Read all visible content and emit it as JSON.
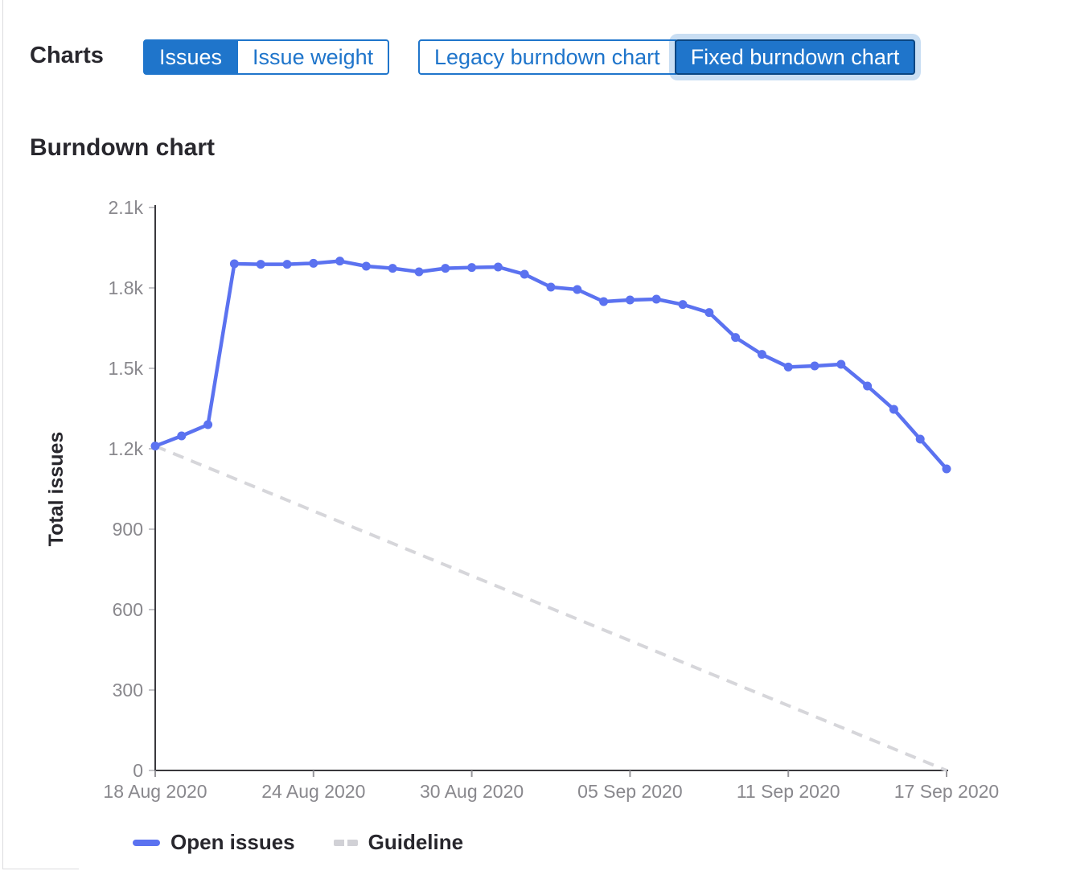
{
  "header": {
    "charts_label": "Charts"
  },
  "toggles": {
    "metric": {
      "options": [
        "Issues",
        "Issue weight"
      ],
      "selected": "Issues"
    },
    "chart_type": {
      "options": [
        "Legacy burndown chart",
        "Fixed burndown chart"
      ],
      "selected": "Fixed burndown chart"
    }
  },
  "section": {
    "title": "Burndown chart"
  },
  "colors": {
    "accent_blue": "#1f75cb",
    "focus_border": "#0a4682",
    "open_issues_line": "#5b72f0",
    "guideline": "#d6d6da",
    "axis": "#39383d",
    "tick_label": "#89888d",
    "text_dark": "#28272d",
    "panel_border": "#dcdcde"
  },
  "chart_data": {
    "type": "line",
    "title": "Burndown chart",
    "xlabel": "",
    "ylabel": "Total issues",
    "ylim": [
      0,
      2100
    ],
    "grid": false,
    "legend_position": "bottom",
    "y_ticks": [
      {
        "value": 0,
        "label": "0"
      },
      {
        "value": 300,
        "label": "300"
      },
      {
        "value": 600,
        "label": "600"
      },
      {
        "value": 900,
        "label": "900"
      },
      {
        "value": 1200,
        "label": "1.2k"
      },
      {
        "value": 1500,
        "label": "1.5k"
      },
      {
        "value": 1800,
        "label": "1.8k"
      },
      {
        "value": 2100,
        "label": "2.1k"
      }
    ],
    "x_ticks": [
      {
        "index": 0,
        "label": "18 Aug 2020"
      },
      {
        "index": 6,
        "label": "24 Aug 2020"
      },
      {
        "index": 12,
        "label": "30 Aug 2020"
      },
      {
        "index": 18,
        "label": "05 Sep 2020"
      },
      {
        "index": 24,
        "label": "11 Sep 2020"
      },
      {
        "index": 30,
        "label": "17 Sep 2020"
      }
    ],
    "categories": [
      "18 Aug 2020",
      "19 Aug 2020",
      "20 Aug 2020",
      "21 Aug 2020",
      "22 Aug 2020",
      "23 Aug 2020",
      "24 Aug 2020",
      "25 Aug 2020",
      "26 Aug 2020",
      "27 Aug 2020",
      "28 Aug 2020",
      "29 Aug 2020",
      "30 Aug 2020",
      "31 Aug 2020",
      "01 Sep 2020",
      "02 Sep 2020",
      "03 Sep 2020",
      "04 Sep 2020",
      "05 Sep 2020",
      "06 Sep 2020",
      "07 Sep 2020",
      "08 Sep 2020",
      "09 Sep 2020",
      "10 Sep 2020",
      "11 Sep 2020",
      "12 Sep 2020",
      "13 Sep 2020",
      "14 Sep 2020",
      "15 Sep 2020",
      "16 Sep 2020",
      "17 Sep 2020"
    ],
    "series": [
      {
        "name": "Open issues",
        "style": "solid",
        "color": "#5b72f0",
        "values": [
          1210,
          1248,
          1290,
          1890,
          1888,
          1888,
          1892,
          1900,
          1881,
          1873,
          1860,
          1873,
          1876,
          1878,
          1851,
          1803,
          1794,
          1749,
          1755,
          1758,
          1738,
          1708,
          1615,
          1552,
          1505,
          1509,
          1515,
          1434,
          1347,
          1236,
          1125
        ]
      },
      {
        "name": "Guideline",
        "style": "dashed",
        "color": "#d6d6da",
        "x_indexes": [
          0,
          30
        ],
        "values": [
          1210,
          0
        ]
      }
    ]
  }
}
